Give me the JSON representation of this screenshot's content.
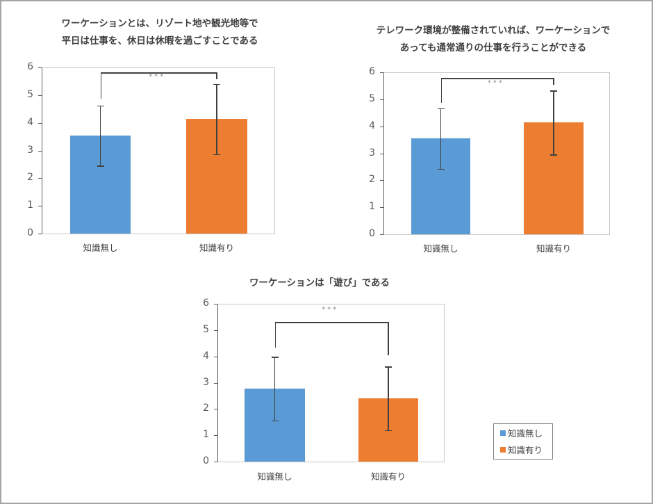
{
  "colors": {
    "no_knowledge": "#5b9bd5",
    "knowledge": "#ed7d31",
    "axis": "#595959",
    "border": "#a6a6a6"
  },
  "legend": {
    "items": [
      {
        "label": "知識無し",
        "color": "#5b9bd5"
      },
      {
        "label": "知識有り",
        "color": "#ed7d31"
      }
    ]
  },
  "chart_data": [
    {
      "type": "bar",
      "title": "ワーケーションとは、リゾート地や観光地等で平日は仕事を、休日は休暇を過ごすことである",
      "title_lines": [
        "ワーケーションとは、リゾート地や観光地等で",
        "平日は仕事を、休日は休暇を過ごすことである"
      ],
      "categories": [
        "知識無し",
        "知識有り"
      ],
      "values": [
        3.54,
        4.14
      ],
      "error_bars": [
        1.08,
        1.27
      ],
      "colors": [
        "#5b9bd5",
        "#ed7d31"
      ],
      "yticks": [
        "0",
        "1",
        "2",
        "3",
        "4",
        "5",
        "6"
      ],
      "ylim": [
        0,
        6
      ],
      "significance": "***",
      "xlabel": "",
      "ylabel": "",
      "grid": false
    },
    {
      "type": "bar",
      "title": "テレワーク環境が整備されていれば、ワーケーションであっても通常通りの仕事を行うことができる",
      "title_lines": [
        "テレワーク環境が整備されていれば、ワーケーションで",
        "あっても通常通りの仕事を行うことができる"
      ],
      "categories": [
        "知識無し",
        "知識有り"
      ],
      "values": [
        3.55,
        4.14
      ],
      "error_bars": [
        1.12,
        1.19
      ],
      "colors": [
        "#5b9bd5",
        "#ed7d31"
      ],
      "yticks": [
        "0",
        "1",
        "2",
        "3",
        "4",
        "5",
        "6"
      ],
      "ylim": [
        0,
        6
      ],
      "significance": "***",
      "xlabel": "",
      "ylabel": "",
      "grid": false
    },
    {
      "type": "bar",
      "title": "ワーケーションは「遊び」である",
      "title_lines": [
        "ワーケーションは「遊び」である"
      ],
      "categories": [
        "知識無し",
        "知識有り"
      ],
      "values": [
        2.77,
        2.4
      ],
      "error_bars": [
        1.21,
        1.21
      ],
      "colors": [
        "#5b9bd5",
        "#ed7d31"
      ],
      "yticks": [
        "0",
        "1",
        "2",
        "3",
        "4",
        "5",
        "6"
      ],
      "ylim": [
        0,
        6
      ],
      "significance": "***",
      "legend": [
        "知識無し",
        "知識有り"
      ],
      "legend_position": "right",
      "xlabel": "",
      "ylabel": "",
      "grid": false
    }
  ]
}
